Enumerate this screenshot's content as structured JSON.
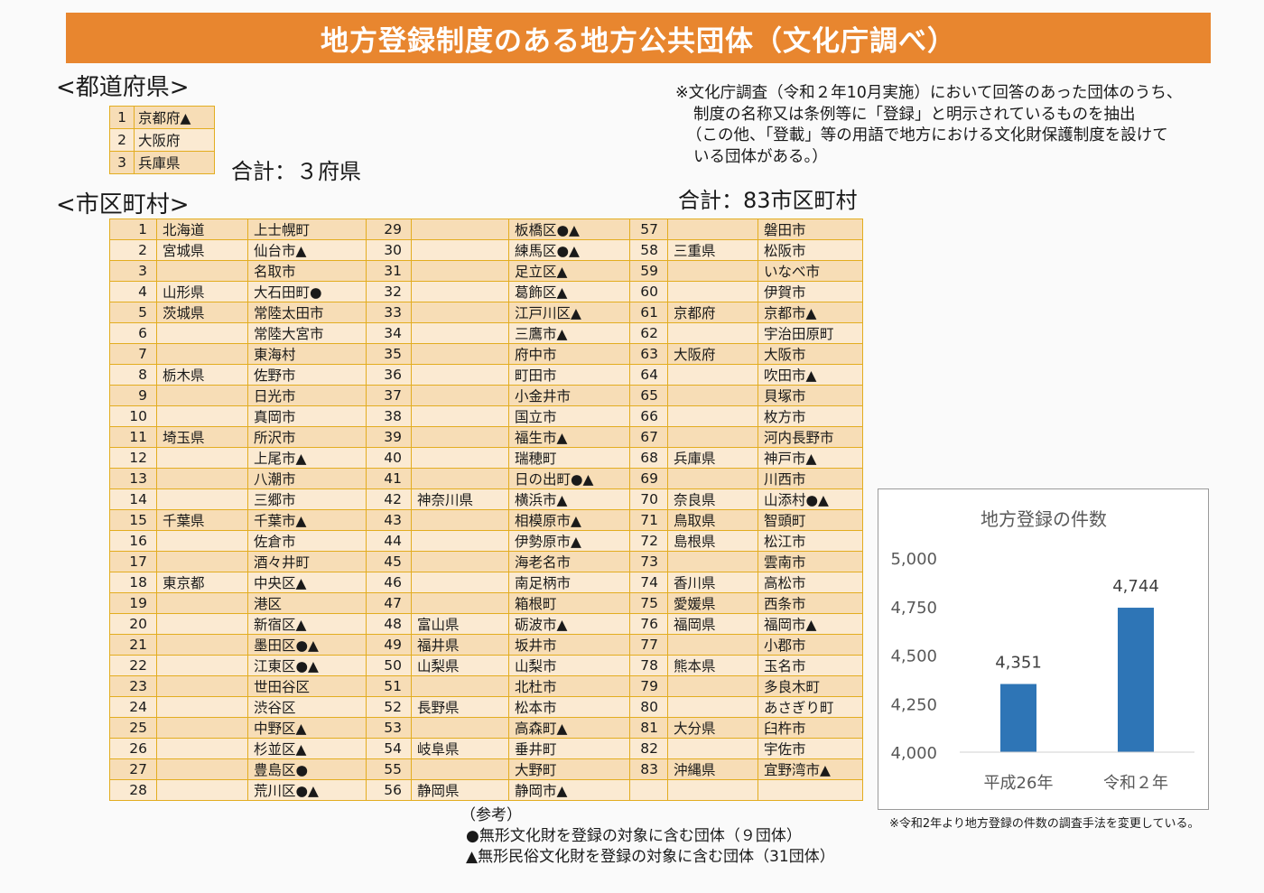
{
  "title": "地方登録制度のある地方公共団体（文化庁調べ）",
  "prefectures": {
    "heading": "<都道府県>",
    "total": "合計：３府県",
    "rows": [
      {
        "no": "1",
        "name": "京都府▲"
      },
      {
        "no": "2",
        "name": "大阪府"
      },
      {
        "no": "3",
        "name": "兵庫県"
      }
    ]
  },
  "note_lines": [
    "※文化庁調査（令和２年10月実施）において回答のあった団体のうち、",
    "制度の名称又は条例等に「登録」と明示されているものを抽出",
    "（この他、「登載」等の用語で地方における文化財保護制度を設けて",
    "いる団体がある。）"
  ],
  "municipalities": {
    "heading": "<市区町村>",
    "total": "合計：83市区町村",
    "rows": [
      [
        {
          "no": "1",
          "pref": "北海道",
          "city": "上士幌町"
        },
        {
          "no": "29",
          "pref": "",
          "city": "板橋区●▲"
        },
        {
          "no": "57",
          "pref": "",
          "city": "磐田市"
        }
      ],
      [
        {
          "no": "2",
          "pref": "宮城県",
          "city": "仙台市▲"
        },
        {
          "no": "30",
          "pref": "",
          "city": "練馬区●▲"
        },
        {
          "no": "58",
          "pref": "三重県",
          "city": "松阪市"
        }
      ],
      [
        {
          "no": "3",
          "pref": "",
          "city": "名取市"
        },
        {
          "no": "31",
          "pref": "",
          "city": "足立区▲"
        },
        {
          "no": "59",
          "pref": "",
          "city": "いなべ市"
        }
      ],
      [
        {
          "no": "4",
          "pref": "山形県",
          "city": "大石田町●"
        },
        {
          "no": "32",
          "pref": "",
          "city": "葛飾区▲"
        },
        {
          "no": "60",
          "pref": "",
          "city": "伊賀市"
        }
      ],
      [
        {
          "no": "5",
          "pref": "茨城県",
          "city": "常陸太田市"
        },
        {
          "no": "33",
          "pref": "",
          "city": "江戸川区▲"
        },
        {
          "no": "61",
          "pref": "京都府",
          "city": "京都市▲"
        }
      ],
      [
        {
          "no": "6",
          "pref": "",
          "city": "常陸大宮市"
        },
        {
          "no": "34",
          "pref": "",
          "city": "三鷹市▲"
        },
        {
          "no": "62",
          "pref": "",
          "city": "宇治田原町"
        }
      ],
      [
        {
          "no": "7",
          "pref": "",
          "city": "東海村"
        },
        {
          "no": "35",
          "pref": "",
          "city": "府中市"
        },
        {
          "no": "63",
          "pref": "大阪府",
          "city": "大阪市"
        }
      ],
      [
        {
          "no": "8",
          "pref": "栃木県",
          "city": "佐野市"
        },
        {
          "no": "36",
          "pref": "",
          "city": "町田市"
        },
        {
          "no": "64",
          "pref": "",
          "city": "吹田市▲"
        }
      ],
      [
        {
          "no": "9",
          "pref": "",
          "city": "日光市"
        },
        {
          "no": "37",
          "pref": "",
          "city": "小金井市"
        },
        {
          "no": "65",
          "pref": "",
          "city": "貝塚市"
        }
      ],
      [
        {
          "no": "10",
          "pref": "",
          "city": "真岡市"
        },
        {
          "no": "38",
          "pref": "",
          "city": "国立市"
        },
        {
          "no": "66",
          "pref": "",
          "city": "枚方市"
        }
      ],
      [
        {
          "no": "11",
          "pref": "埼玉県",
          "city": "所沢市"
        },
        {
          "no": "39",
          "pref": "",
          "city": "福生市▲"
        },
        {
          "no": "67",
          "pref": "",
          "city": "河内長野市"
        }
      ],
      [
        {
          "no": "12",
          "pref": "",
          "city": "上尾市▲"
        },
        {
          "no": "40",
          "pref": "",
          "city": "瑞穂町"
        },
        {
          "no": "68",
          "pref": "兵庫県",
          "city": "神戸市▲"
        }
      ],
      [
        {
          "no": "13",
          "pref": "",
          "city": "八潮市"
        },
        {
          "no": "41",
          "pref": "",
          "city": "日の出町●▲"
        },
        {
          "no": "69",
          "pref": "",
          "city": "川西市"
        }
      ],
      [
        {
          "no": "14",
          "pref": "",
          "city": "三郷市"
        },
        {
          "no": "42",
          "pref": "神奈川県",
          "city": "横浜市▲"
        },
        {
          "no": "70",
          "pref": "奈良県",
          "city": "山添村●▲"
        }
      ],
      [
        {
          "no": "15",
          "pref": "千葉県",
          "city": "千葉市▲"
        },
        {
          "no": "43",
          "pref": "",
          "city": "相模原市▲"
        },
        {
          "no": "71",
          "pref": "鳥取県",
          "city": "智頭町"
        }
      ],
      [
        {
          "no": "16",
          "pref": "",
          "city": "佐倉市"
        },
        {
          "no": "44",
          "pref": "",
          "city": "伊勢原市▲"
        },
        {
          "no": "72",
          "pref": "島根県",
          "city": "松江市"
        }
      ],
      [
        {
          "no": "17",
          "pref": "",
          "city": "酒々井町"
        },
        {
          "no": "45",
          "pref": "",
          "city": "海老名市"
        },
        {
          "no": "73",
          "pref": "",
          "city": "雲南市"
        }
      ],
      [
        {
          "no": "18",
          "pref": "東京都",
          "city": "中央区▲"
        },
        {
          "no": "46",
          "pref": "",
          "city": "南足柄市"
        },
        {
          "no": "74",
          "pref": "香川県",
          "city": "高松市"
        }
      ],
      [
        {
          "no": "19",
          "pref": "",
          "city": "港区"
        },
        {
          "no": "47",
          "pref": "",
          "city": "箱根町"
        },
        {
          "no": "75",
          "pref": "愛媛県",
          "city": "西条市"
        }
      ],
      [
        {
          "no": "20",
          "pref": "",
          "city": "新宿区▲"
        },
        {
          "no": "48",
          "pref": "富山県",
          "city": "砺波市▲"
        },
        {
          "no": "76",
          "pref": "福岡県",
          "city": "福岡市▲"
        }
      ],
      [
        {
          "no": "21",
          "pref": "",
          "city": "墨田区●▲"
        },
        {
          "no": "49",
          "pref": "福井県",
          "city": "坂井市"
        },
        {
          "no": "77",
          "pref": "",
          "city": "小郡市"
        }
      ],
      [
        {
          "no": "22",
          "pref": "",
          "city": "江東区●▲"
        },
        {
          "no": "50",
          "pref": "山梨県",
          "city": "山梨市"
        },
        {
          "no": "78",
          "pref": "熊本県",
          "city": "玉名市"
        }
      ],
      [
        {
          "no": "23",
          "pref": "",
          "city": "世田谷区"
        },
        {
          "no": "51",
          "pref": "",
          "city": "北杜市"
        },
        {
          "no": "79",
          "pref": "",
          "city": "多良木町"
        }
      ],
      [
        {
          "no": "24",
          "pref": "",
          "city": "渋谷区"
        },
        {
          "no": "52",
          "pref": "長野県",
          "city": "松本市"
        },
        {
          "no": "80",
          "pref": "",
          "city": "あさぎり町"
        }
      ],
      [
        {
          "no": "25",
          "pref": "",
          "city": "中野区▲"
        },
        {
          "no": "53",
          "pref": "",
          "city": "高森町▲"
        },
        {
          "no": "81",
          "pref": "大分県",
          "city": "臼杵市"
        }
      ],
      [
        {
          "no": "26",
          "pref": "",
          "city": "杉並区▲"
        },
        {
          "no": "54",
          "pref": "岐阜県",
          "city": "垂井町"
        },
        {
          "no": "82",
          "pref": "",
          "city": "宇佐市"
        }
      ],
      [
        {
          "no": "27",
          "pref": "",
          "city": "豊島区●"
        },
        {
          "no": "55",
          "pref": "",
          "city": "大野町"
        },
        {
          "no": "83",
          "pref": "沖縄県",
          "city": "宜野湾市▲"
        }
      ],
      [
        {
          "no": "28",
          "pref": "",
          "city": "荒川区●▲"
        },
        {
          "no": "56",
          "pref": "静岡県",
          "city": "静岡市▲"
        },
        {
          "no": "",
          "pref": "",
          "city": ""
        }
      ]
    ]
  },
  "reference": {
    "heading": "（参考）",
    "line1": "●無形文化財を登録の対象に含む団体（９団体）",
    "line2": "▲無形民俗文化財を登録の対象に含む団体（31団体）"
  },
  "chart_data": {
    "type": "bar",
    "title": "地方登録の件数",
    "categories": [
      "平成26年",
      "令和２年"
    ],
    "values": [
      4351,
      4744
    ],
    "value_labels": [
      "4,351",
      "4,744"
    ],
    "ylim": [
      4000,
      5000
    ],
    "yticks": [
      4000,
      4250,
      4500,
      4750,
      5000
    ],
    "ytick_labels": [
      "4,000",
      "4,250",
      "4,500",
      "4,750",
      "5,000"
    ],
    "bar_color": "#2e75b6",
    "grid": false,
    "footnote": "※令和2年より地方登録の件数の調査手法を変更している。"
  }
}
